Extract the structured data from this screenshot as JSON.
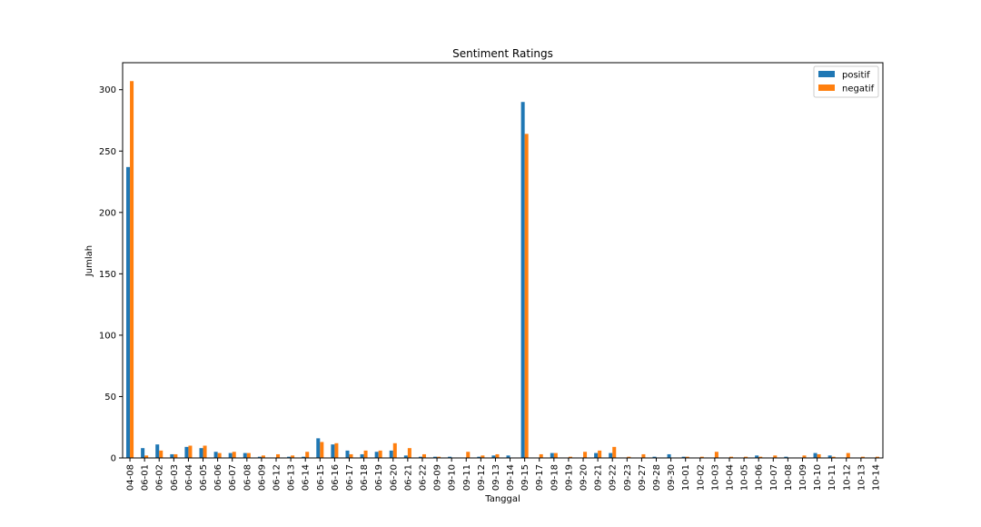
{
  "chart_data": {
    "type": "bar",
    "title": "Sentiment Ratings",
    "xlabel": "Tanggal",
    "ylabel": "Jumlah",
    "ylim": [
      0,
      322
    ],
    "yticks": [
      0,
      50,
      100,
      150,
      200,
      250,
      300
    ],
    "grid": false,
    "legend_position": "top-right",
    "categories": [
      "04-08",
      "06-01",
      "06-02",
      "06-03",
      "06-04",
      "06-05",
      "06-06",
      "06-07",
      "06-08",
      "06-09",
      "06-12",
      "06-13",
      "06-14",
      "06-15",
      "06-16",
      "06-17",
      "06-18",
      "06-19",
      "06-20",
      "06-21",
      "06-22",
      "09-09",
      "09-10",
      "09-11",
      "09-12",
      "09-13",
      "09-14",
      "09-15",
      "09-17",
      "09-18",
      "09-19",
      "09-20",
      "09-21",
      "09-22",
      "09-23",
      "09-27",
      "09-28",
      "09-30",
      "10-01",
      "10-02",
      "10-03",
      "10-04",
      "10-05",
      "10-06",
      "10-07",
      "10-08",
      "10-09",
      "10-10",
      "10-11",
      "10-12",
      "10-13",
      "10-14"
    ],
    "series": [
      {
        "name": "positif",
        "color": "#1f77b4",
        "values": [
          237,
          8,
          11,
          3,
          9,
          8,
          5,
          4,
          4,
          1,
          0,
          1,
          1,
          16,
          11,
          6,
          3,
          5,
          6,
          2,
          1,
          1,
          1,
          0,
          1,
          2,
          2,
          290,
          0,
          4,
          0,
          0,
          4,
          4,
          0,
          0,
          1,
          3,
          1,
          0,
          0,
          0,
          0,
          2,
          0,
          1,
          0,
          4,
          2,
          0,
          0,
          0
        ]
      },
      {
        "name": "negatif",
        "color": "#ff7f0e",
        "values": [
          307,
          2,
          6,
          3,
          10,
          10,
          4,
          5,
          4,
          2,
          3,
          2,
          5,
          13,
          12,
          3,
          6,
          6,
          12,
          8,
          3,
          1,
          0,
          5,
          2,
          3,
          0,
          264,
          3,
          4,
          1,
          5,
          6,
          9,
          1,
          3,
          0,
          0,
          1,
          1,
          5,
          1,
          1,
          1,
          2,
          0,
          2,
          3,
          1,
          4,
          1,
          1
        ]
      }
    ]
  }
}
